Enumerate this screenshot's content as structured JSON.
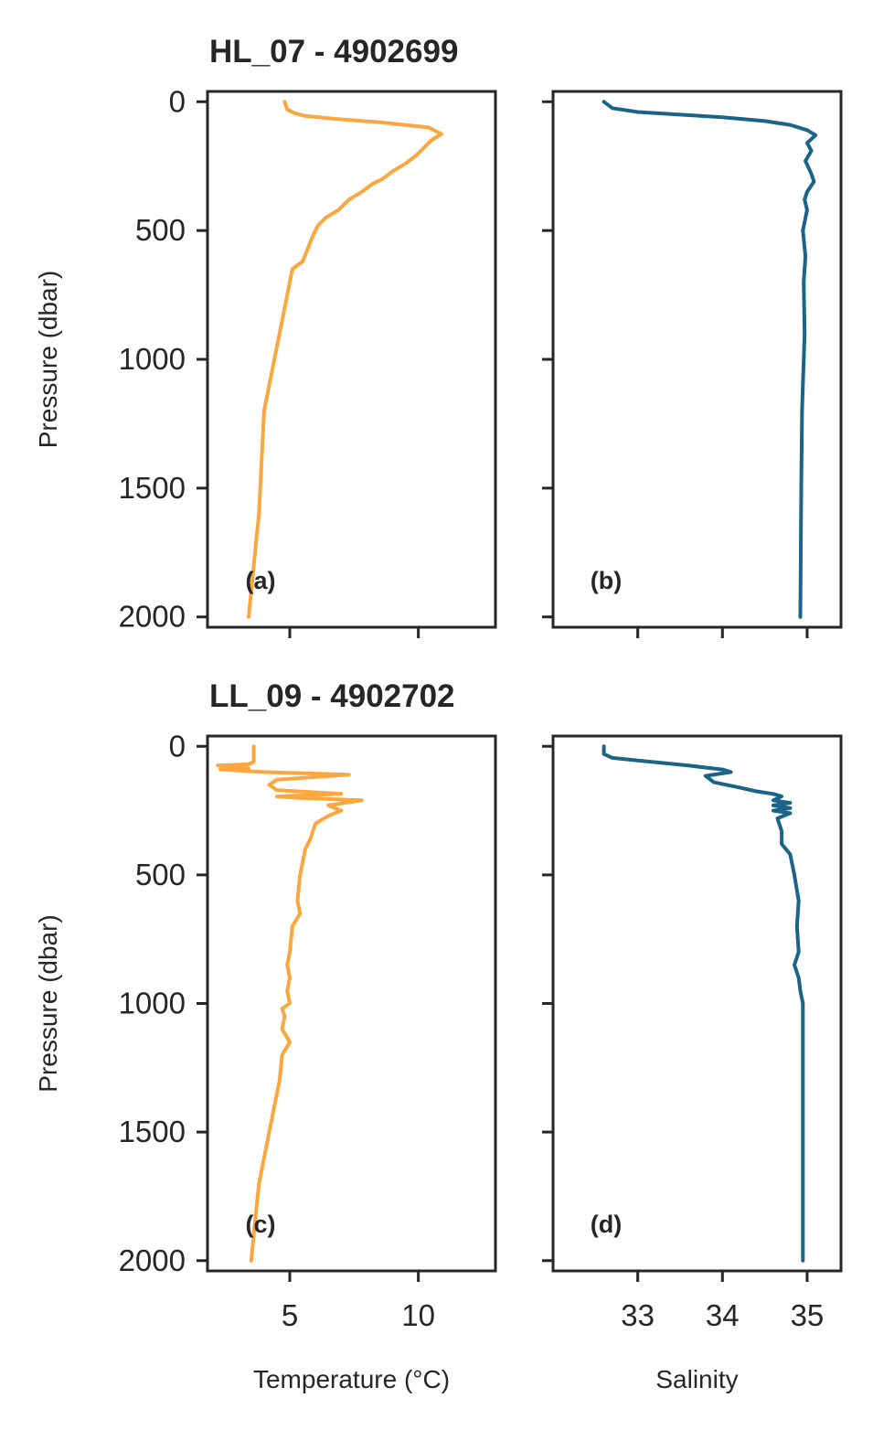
{
  "chart_data": [
    {
      "type": "line",
      "panel": "a",
      "tag": "(a)",
      "title": "HL_07 - 4902699",
      "xlabel": "",
      "ylabel": "Pressure (dbar)",
      "xlim": [
        1.8,
        13.0
      ],
      "ylim": [
        2040,
        -40
      ],
      "y_inverted": true,
      "xticks": [
        5,
        10
      ],
      "xticklabels": [
        "",
        ""
      ],
      "yticks": [
        0,
        500,
        1000,
        1500,
        2000
      ],
      "yticklabels": [
        "0",
        "500",
        "1000",
        "1500",
        "2000"
      ],
      "grid": false,
      "color": "#f9a73e",
      "series": [
        {
          "x": [
            4.8,
            4.9,
            5.2,
            5.6,
            6.6,
            8.5,
            10.4,
            10.9,
            10.5,
            10.2,
            9.9,
            9.5,
            9.0,
            8.6,
            8.2,
            7.8,
            7.3,
            6.9,
            6.4,
            6.1,
            5.9,
            5.7,
            5.5,
            5.1,
            5.0,
            4.8,
            4.6,
            4.4,
            4.2,
            4.0,
            3.9,
            3.8,
            3.7,
            3.6,
            3.5,
            3.4
          ],
          "y": [
            0,
            30,
            45,
            55,
            65,
            80,
            100,
            125,
            150,
            180,
            210,
            240,
            270,
            300,
            320,
            350,
            380,
            420,
            450,
            480,
            520,
            570,
            620,
            650,
            700,
            800,
            900,
            1000,
            1100,
            1200,
            1400,
            1600,
            1700,
            1800,
            1900,
            2000
          ]
        }
      ]
    },
    {
      "type": "line",
      "panel": "b",
      "tag": "(b)",
      "title": "",
      "xlabel": "",
      "ylabel": "",
      "xlim": [
        32.0,
        35.4
      ],
      "ylim": [
        2040,
        -40
      ],
      "y_inverted": true,
      "xticks": [
        33,
        34,
        35
      ],
      "xticklabels": [
        "",
        "",
        ""
      ],
      "yticks": [
        0,
        500,
        1000,
        1500,
        2000
      ],
      "yticklabels": [
        "",
        "",
        "",
        "",
        ""
      ],
      "grid": false,
      "color": "#1b6387",
      "series": [
        {
          "x": [
            32.6,
            32.7,
            33.0,
            33.5,
            34.0,
            34.5,
            34.8,
            35.0,
            35.1,
            35.0,
            35.05,
            34.98,
            35.05,
            35.08,
            35.0,
            34.97,
            35.0,
            34.95,
            34.98,
            34.96,
            34.97,
            34.95,
            34.94,
            34.93,
            34.92
          ],
          "y": [
            0,
            25,
            40,
            50,
            60,
            75,
            90,
            110,
            130,
            160,
            190,
            230,
            280,
            310,
            350,
            380,
            420,
            500,
            600,
            700,
            900,
            1100,
            1200,
            1500,
            2000
          ]
        }
      ]
    },
    {
      "type": "line",
      "panel": "c",
      "tag": "(c)",
      "title": "LL_09 - 4902702",
      "xlabel": "Temperature (°C)",
      "ylabel": "Pressure (dbar)",
      "xlim": [
        1.8,
        13.0
      ],
      "ylim": [
        2040,
        -40
      ],
      "y_inverted": true,
      "xticks": [
        5,
        10
      ],
      "xticklabels": [
        "5",
        "10"
      ],
      "yticks": [
        0,
        500,
        1000,
        1500,
        2000
      ],
      "yticklabels": [
        "0",
        "500",
        "1000",
        "1500",
        "2000"
      ],
      "grid": false,
      "color": "#f9a73e",
      "series": [
        {
          "x": [
            3.6,
            3.6,
            3.4,
            2.2,
            3.4,
            2.3,
            4.0,
            7.3,
            4.5,
            4.2,
            4.5,
            7.0,
            4.5,
            5.2,
            7.8,
            6.5,
            7.0,
            6.5,
            6.0,
            5.9,
            5.8,
            5.6,
            5.5,
            5.4,
            5.3,
            5.4,
            5.1,
            5.0,
            4.9,
            5.0,
            4.9,
            5.0,
            4.7,
            4.8,
            4.7,
            5.0,
            4.7,
            4.6,
            4.4,
            4.2,
            4.0,
            3.8,
            3.7,
            3.6,
            3.5
          ],
          "y": [
            0,
            60,
            70,
            75,
            85,
            90,
            100,
            110,
            130,
            150,
            170,
            185,
            195,
            200,
            210,
            230,
            250,
            270,
            300,
            330,
            360,
            400,
            450,
            500,
            600,
            650,
            700,
            800,
            850,
            900,
            950,
            1000,
            1020,
            1050,
            1100,
            1150,
            1200,
            1300,
            1400,
            1500,
            1600,
            1700,
            1800,
            1900,
            2000
          ]
        }
      ]
    },
    {
      "type": "line",
      "panel": "d",
      "tag": "(d)",
      "title": "",
      "xlabel": "Salinity",
      "ylabel": "",
      "xlim": [
        32.0,
        35.4
      ],
      "ylim": [
        2040,
        -40
      ],
      "y_inverted": true,
      "xticks": [
        33,
        34,
        35
      ],
      "xticklabels": [
        "33",
        "34",
        "35"
      ],
      "yticks": [
        0,
        500,
        1000,
        1500,
        2000
      ],
      "yticklabels": [
        "",
        "",
        "",
        "",
        ""
      ],
      "grid": false,
      "color": "#1b6387",
      "series": [
        {
          "x": [
            32.6,
            32.6,
            32.7,
            33.0,
            33.3,
            33.6,
            34.0,
            34.1,
            33.8,
            33.9,
            34.2,
            34.4,
            34.6,
            34.7,
            34.6,
            34.8,
            34.6,
            34.8,
            34.6,
            34.8,
            34.65,
            34.7,
            34.7,
            34.8,
            34.85,
            34.9,
            34.88,
            34.9,
            34.85,
            34.9,
            34.92,
            34.95,
            34.95,
            34.95,
            34.95
          ],
          "y": [
            0,
            30,
            45,
            55,
            65,
            75,
            90,
            100,
            115,
            140,
            160,
            175,
            185,
            195,
            210,
            220,
            230,
            240,
            250,
            260,
            280,
            330,
            380,
            420,
            500,
            600,
            700,
            800,
            850,
            900,
            950,
            1000,
            1200,
            1500,
            2000
          ]
        }
      ]
    }
  ]
}
